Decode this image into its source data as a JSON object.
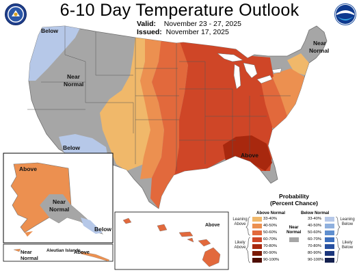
{
  "header": {
    "title": "6-10 Day Temperature Outlook",
    "valid_label": "Valid:",
    "valid_value": "November 23 - 27, 2025",
    "issued_label": "Issued:",
    "issued_value": "November 17, 2025"
  },
  "logos": {
    "left": "doc-seal-icon",
    "right": "noaa-logo-icon"
  },
  "colors": {
    "near_normal": "#a6a6a6",
    "above_33_40": "#f0b86a",
    "above_40_50": "#ec9050",
    "above_50_60": "#e2693c",
    "above_60_70": "#cf4627",
    "above_70_80": "#a8280e",
    "above_80_90": "#7b1a04",
    "above_90_100": "#4e0d00",
    "below_33_40": "#b6c8e8",
    "below_40_50": "#8fb0de",
    "below_50_60": "#5f8fcf",
    "below_60_70": "#3c6fbe",
    "below_70_80": "#2750a0",
    "below_80_90": "#1b367c",
    "below_90_100": "#14204e"
  },
  "map_labels": {
    "below_nw": "Below",
    "near_normal_w_1": "Near",
    "near_normal_w_2": "Normal",
    "near_normal_ne_1": "Near",
    "near_normal_ne_2": "Normal",
    "below_sw": "Below",
    "above_se": "Above",
    "ak_above": "Above",
    "ak_near_1": "Near",
    "ak_near_2": "Normal",
    "ak_below": "Below",
    "aleutian": "Aleutian Islands",
    "aleutian_near_1": "Near",
    "aleutian_near_2": "Normal",
    "aleutian_above": "Above",
    "hi_above": "Above"
  },
  "legend": {
    "title_1": "Probability",
    "title_2": "(Percent Chance)",
    "above_head": "Above Normal",
    "below_head": "Below Normal",
    "near_head_1": "Near",
    "near_head_2": "Normal",
    "leaning_above_1": "Leaning",
    "leaning_above_2": "Above",
    "likely_above_1": "Likely",
    "likely_above_2": "Above",
    "leaning_below_1": "Leaning",
    "leaning_below_2": "Below",
    "likely_below_1": "Likely",
    "likely_below_2": "Below",
    "ranges": [
      "33-40%",
      "40-50%",
      "50-60%",
      "60-70%",
      "70-80%",
      "80-90%",
      "90-100%"
    ]
  }
}
